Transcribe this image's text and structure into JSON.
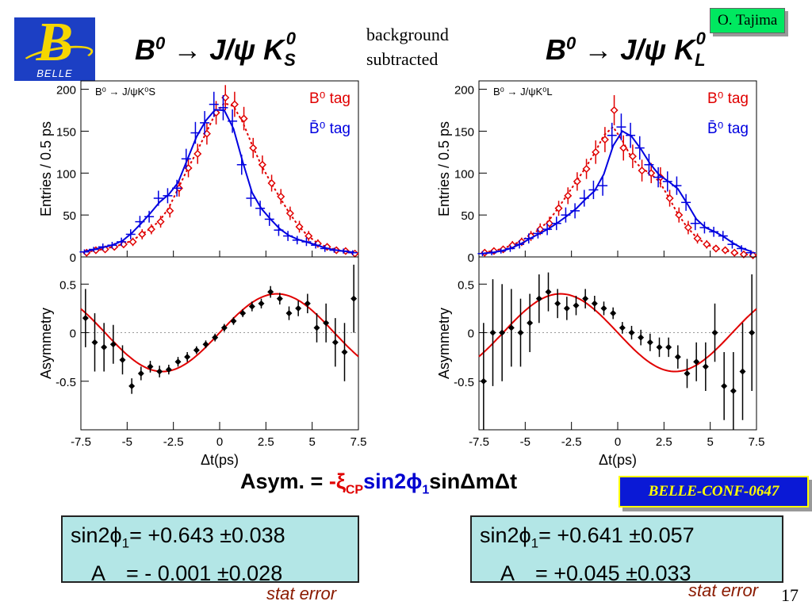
{
  "header": {
    "logo_text": "BELLE",
    "left_title": {
      "main": "B",
      "sup": "0",
      "arrow": " → J/ψ K",
      "sub_s": "S",
      "sup2": "0"
    },
    "right_title": {
      "main": "B",
      "sup": "0",
      "arrow": " → J/ψ K",
      "sub_s": "L",
      "sup2": "0"
    },
    "note_line1": "background",
    "note_line2": "subtracted",
    "author": "O. Tajima"
  },
  "formula": {
    "prefix": "Asym. = ",
    "minus": "-",
    "xi": "ξ",
    "xi_sub": "CP",
    "sin2": "sin2",
    "phi": "ϕ",
    "phi_sub": "1",
    "rest": "sinΔmΔt"
  },
  "conference": "BELLE-CONF-0647",
  "results": {
    "left": {
      "line1": {
        "label": "sin2ϕ",
        "sub": "1",
        "value": "= +0.643 ±0.038"
      },
      "line2": {
        "label": "A",
        "value": "= - 0.001 ±0.028"
      }
    },
    "right": {
      "line1": {
        "label": "sin2ϕ",
        "sub": "1",
        "value": "= +0.641 ±0.057"
      },
      "line2": {
        "label": "A",
        "value": "= +0.045 ±0.033"
      }
    },
    "stat_error": "stat error"
  },
  "page_number": "17",
  "colors": {
    "b0_tag": "#e00000",
    "b0bar_tag": "#0000e0",
    "asym_fit": "#e00000",
    "points": "#000000"
  },
  "chart_data": [
    {
      "type": "scatter",
      "panel": "left-top",
      "title": "B⁰ → J/ψK⁰S",
      "xlabel": "",
      "ylabel": "Entries / 0.5 ps",
      "xlim": [
        -7.5,
        7.5
      ],
      "ylim": [
        0,
        210
      ],
      "yticks": [
        0,
        50,
        100,
        150,
        200
      ],
      "legend": [
        "B⁰ tag",
        "B̄⁰ tag"
      ],
      "legend_placement": "top-right",
      "series": [
        {
          "name": "B⁰ tag",
          "color": "#e00000",
          "marker": "open-diamond",
          "fit": "dotted",
          "x": [
            -7.25,
            -6.75,
            -6.25,
            -5.75,
            -5.25,
            -4.75,
            -4.25,
            -3.75,
            -3.25,
            -2.75,
            -2.25,
            -1.75,
            -1.25,
            -0.75,
            -0.25,
            0.25,
            0.75,
            1.25,
            1.75,
            2.25,
            2.75,
            3.25,
            3.75,
            4.25,
            4.75,
            5.25,
            5.75,
            6.25,
            6.75,
            7.25
          ],
          "y": [
            5,
            8,
            9,
            12,
            15,
            18,
            27,
            33,
            42,
            55,
            82,
            106,
            123,
            147,
            172,
            190,
            182,
            165,
            130,
            110,
            88,
            72,
            52,
            36,
            25,
            16,
            12,
            8,
            7,
            4
          ],
          "err": [
            3,
            3,
            3,
            4,
            4,
            5,
            6,
            6,
            7,
            8,
            10,
            11,
            12,
            13,
            14,
            15,
            15,
            14,
            12,
            11,
            10,
            9,
            8,
            7,
            6,
            5,
            4,
            3,
            3,
            3
          ]
        },
        {
          "name": "B̄⁰ tag",
          "color": "#0000e0",
          "marker": "cross",
          "fit": "solid",
          "x": [
            -7.25,
            -6.75,
            -6.25,
            -5.75,
            -5.25,
            -4.75,
            -4.25,
            -3.75,
            -3.25,
            -2.75,
            -2.25,
            -1.75,
            -1.25,
            -0.75,
            -0.25,
            0.25,
            0.75,
            1.25,
            1.75,
            2.25,
            2.75,
            3.25,
            3.75,
            4.25,
            4.75,
            5.25,
            5.75,
            6.25,
            6.75,
            7.25
          ],
          "y": [
            6,
            9,
            12,
            14,
            18,
            27,
            42,
            48,
            70,
            73,
            82,
            117,
            148,
            160,
            182,
            178,
            162,
            110,
            70,
            58,
            45,
            32,
            25,
            20,
            18,
            14,
            10,
            8,
            7,
            5
          ],
          "err": [
            3,
            3,
            4,
            4,
            5,
            6,
            7,
            7,
            9,
            9,
            10,
            12,
            13,
            14,
            15,
            15,
            14,
            12,
            10,
            9,
            8,
            7,
            6,
            5,
            5,
            4,
            4,
            3,
            3,
            3
          ]
        }
      ]
    },
    {
      "type": "scatter",
      "panel": "left-bottom",
      "xlabel": "Δt(ps)",
      "ylabel": "Asymmetry",
      "xlim": [
        -7.5,
        7.5
      ],
      "ylim": [
        -1.0,
        0.78
      ],
      "yticks": [
        -0.5,
        0,
        0.5
      ],
      "xticks": [
        -7.5,
        -5,
        -2.5,
        0,
        2.5,
        5,
        7.5
      ],
      "xtick_labels": [
        "-7.5",
        "-5",
        "-2.5",
        "0",
        "2.5",
        "5",
        "7.5"
      ],
      "fit": {
        "amplitude": 0.4,
        "dm": 0.507,
        "color": "#e00000"
      },
      "series": [
        {
          "name": "",
          "color": "#000000",
          "marker": "filled-diamond",
          "x": [
            -7.25,
            -6.75,
            -6.25,
            -5.75,
            -5.25,
            -4.75,
            -4.25,
            -3.75,
            -3.25,
            -2.75,
            -2.25,
            -1.75,
            -1.25,
            -0.75,
            -0.25,
            0.25,
            0.75,
            1.25,
            1.75,
            2.25,
            2.75,
            3.25,
            3.75,
            4.25,
            4.75,
            5.25,
            5.75,
            6.25,
            6.75,
            7.25
          ],
          "y": [
            0.15,
            -0.1,
            -0.15,
            -0.12,
            -0.28,
            -0.55,
            -0.42,
            -0.35,
            -0.4,
            -0.38,
            -0.3,
            -0.25,
            -0.18,
            -0.12,
            -0.05,
            0.05,
            0.12,
            0.2,
            0.27,
            0.3,
            0.42,
            0.35,
            0.2,
            0.25,
            0.3,
            0.05,
            0.1,
            -0.1,
            -0.2,
            0.35
          ],
          "err": [
            0.3,
            0.3,
            0.25,
            0.2,
            0.15,
            0.08,
            0.07,
            0.06,
            0.06,
            0.05,
            0.05,
            0.05,
            0.04,
            0.04,
            0.04,
            0.04,
            0.04,
            0.04,
            0.05,
            0.05,
            0.06,
            0.06,
            0.07,
            0.08,
            0.1,
            0.15,
            0.2,
            0.25,
            0.3,
            0.35
          ]
        }
      ]
    },
    {
      "type": "scatter",
      "panel": "right-top",
      "title": "B⁰ → J/ψK⁰L",
      "xlabel": "",
      "ylabel": "Entries / 0.5 ps",
      "xlim": [
        -7.5,
        7.5
      ],
      "ylim": [
        0,
        210
      ],
      "yticks": [
        0,
        50,
        100,
        150,
        200
      ],
      "legend": [
        "B⁰ tag",
        "B̄⁰ tag"
      ],
      "legend_placement": "top-right",
      "series": [
        {
          "name": "B⁰ tag",
          "color": "#e00000",
          "marker": "open-diamond",
          "fit": "dotted",
          "x": [
            -7.25,
            -6.75,
            -6.25,
            -5.75,
            -5.25,
            -4.75,
            -4.25,
            -3.75,
            -3.25,
            -2.75,
            -2.25,
            -1.75,
            -1.25,
            -0.75,
            -0.25,
            0.25,
            0.75,
            1.25,
            1.75,
            2.25,
            2.75,
            3.25,
            3.75,
            4.25,
            4.75,
            5.25,
            5.75,
            6.25,
            6.75,
            7.25
          ],
          "y": [
            5,
            7,
            9,
            14,
            18,
            25,
            33,
            40,
            58,
            73,
            90,
            105,
            125,
            140,
            175,
            130,
            120,
            103,
            100,
            95,
            70,
            50,
            35,
            22,
            15,
            10,
            8,
            5,
            3,
            2
          ],
          "err": [
            3,
            3,
            4,
            5,
            5,
            6,
            7,
            8,
            9,
            10,
            11,
            12,
            14,
            15,
            18,
            15,
            14,
            13,
            12,
            12,
            10,
            9,
            8,
            6,
            5,
            4,
            4,
            3,
            3,
            2
          ]
        },
        {
          "name": "B̄⁰ tag",
          "color": "#0000e0",
          "marker": "cross",
          "fit": "solid",
          "x": [
            -7.25,
            -6.75,
            -6.25,
            -5.75,
            -5.25,
            -4.75,
            -4.25,
            -3.75,
            -3.25,
            -2.75,
            -2.25,
            -1.75,
            -1.25,
            -0.75,
            -0.25,
            0.25,
            0.75,
            1.25,
            1.75,
            2.25,
            2.75,
            3.25,
            3.75,
            4.25,
            4.75,
            5.25,
            5.75,
            6.25,
            6.75,
            7.25
          ],
          "y": [
            4,
            5,
            7,
            10,
            15,
            22,
            28,
            33,
            40,
            50,
            55,
            70,
            80,
            85,
            145,
            155,
            145,
            130,
            110,
            95,
            90,
            85,
            65,
            40,
            35,
            30,
            25,
            15,
            10,
            5
          ],
          "err": [
            3,
            3,
            3,
            4,
            5,
            6,
            6,
            7,
            8,
            9,
            9,
            10,
            11,
            12,
            15,
            16,
            15,
            14,
            13,
            12,
            12,
            11,
            10,
            8,
            7,
            6,
            6,
            5,
            4,
            3
          ]
        }
      ]
    },
    {
      "type": "scatter",
      "panel": "right-bottom",
      "xlabel": "Δt(ps)",
      "ylabel": "Asymmetry",
      "xlim": [
        -7.5,
        7.5
      ],
      "ylim": [
        -1.0,
        0.78
      ],
      "yticks": [
        -0.5,
        0,
        0.5
      ],
      "xticks": [
        -7.5,
        -5,
        -2.5,
        0,
        2.5,
        5,
        7.5
      ],
      "xtick_labels": [
        "-7.5",
        "-5",
        "-2.5",
        "0",
        "2.5",
        "5",
        "7.5"
      ],
      "fit": {
        "amplitude": -0.4,
        "dm": 0.507,
        "color": "#e00000"
      },
      "series": [
        {
          "name": "",
          "color": "#000000",
          "marker": "filled-diamond",
          "x": [
            -7.25,
            -6.75,
            -6.25,
            -5.75,
            -5.25,
            -4.75,
            -4.25,
            -3.75,
            -3.25,
            -2.75,
            -2.25,
            -1.75,
            -1.25,
            -0.75,
            -0.25,
            0.25,
            0.75,
            1.25,
            1.75,
            2.25,
            2.75,
            3.25,
            3.75,
            4.25,
            4.75,
            5.25,
            5.75,
            6.25,
            6.75,
            7.25
          ],
          "y": [
            -0.5,
            0.0,
            0.0,
            0.05,
            0.0,
            0.1,
            0.35,
            0.42,
            0.3,
            0.25,
            0.28,
            0.35,
            0.3,
            0.25,
            0.2,
            0.05,
            0.0,
            -0.05,
            -0.1,
            -0.15,
            -0.15,
            -0.25,
            -0.42,
            -0.3,
            -0.35,
            0.0,
            -0.55,
            -0.6,
            -0.4,
            0.0
          ],
          "err": [
            0.6,
            0.55,
            0.5,
            0.4,
            0.35,
            0.3,
            0.25,
            0.2,
            0.15,
            0.12,
            0.1,
            0.1,
            0.08,
            0.07,
            0.06,
            0.06,
            0.07,
            0.08,
            0.09,
            0.1,
            0.1,
            0.12,
            0.15,
            0.2,
            0.25,
            0.3,
            0.35,
            0.4,
            0.5,
            0.6
          ]
        }
      ]
    }
  ]
}
